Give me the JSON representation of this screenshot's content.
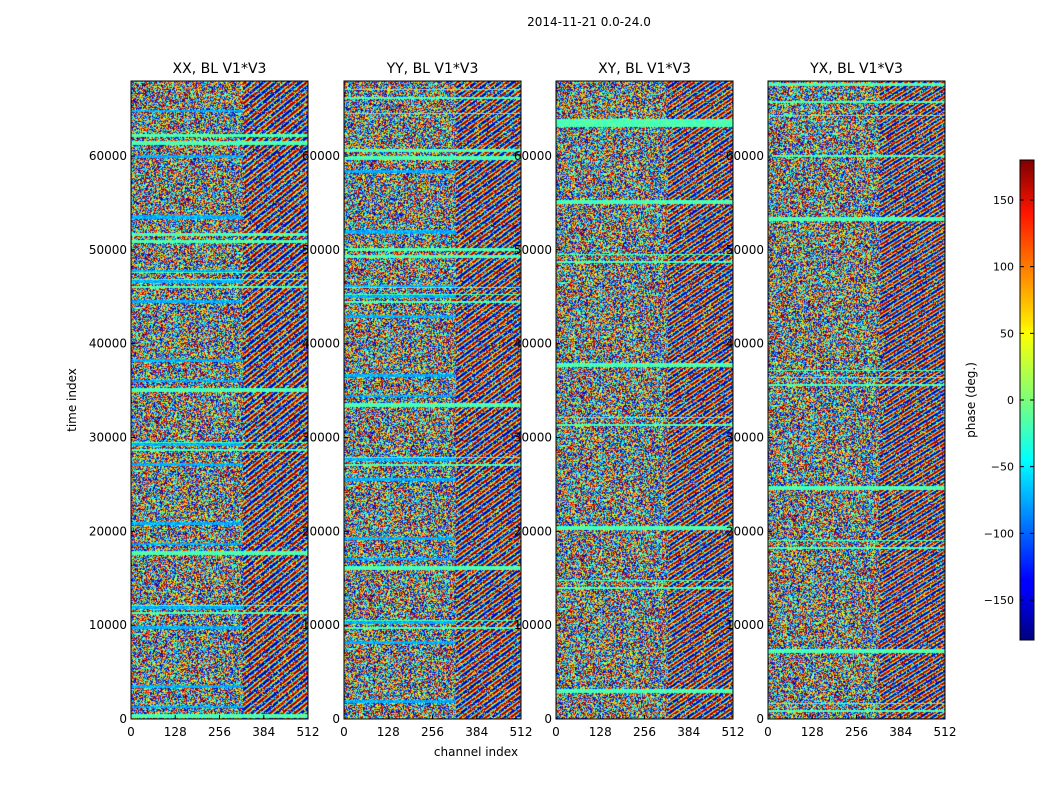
{
  "figure": {
    "suptitle": "2014-11-21 0.0-24.0"
  },
  "chart_data": {
    "type": "heatmap",
    "suptitle": "2014-11-21 0.0-24.0",
    "xlabel": "channel index",
    "ylabel": "time index",
    "xlim": [
      0,
      512
    ],
    "ylim": [
      0,
      68000
    ],
    "xticks": [
      0,
      128,
      256,
      384,
      512
    ],
    "yticks": [
      0,
      10000,
      20000,
      30000,
      40000,
      50000,
      60000
    ],
    "panels": [
      {
        "title": "XX, BL V1*V3"
      },
      {
        "title": "YY, BL V1*V3"
      },
      {
        "title": "XY, BL V1*V3"
      },
      {
        "title": "YX, BL V1*V3"
      }
    ],
    "colorbar": {
      "label": "phase (deg.)",
      "range": [
        -180,
        180
      ],
      "ticks": [
        -150,
        -100,
        -50,
        0,
        50,
        100,
        150
      ],
      "colormap": "jet"
    },
    "grid": false
  }
}
